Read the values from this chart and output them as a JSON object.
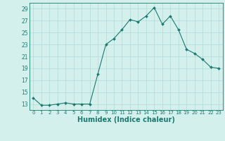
{
  "x": [
    0,
    1,
    2,
    3,
    4,
    5,
    6,
    7,
    8,
    9,
    10,
    11,
    12,
    13,
    14,
    15,
    16,
    17,
    18,
    19,
    20,
    21,
    22,
    23
  ],
  "y": [
    14.0,
    12.8,
    12.8,
    13.0,
    13.2,
    13.0,
    13.0,
    13.0,
    18.0,
    23.0,
    24.0,
    25.5,
    27.2,
    26.8,
    27.8,
    29.2,
    26.4,
    27.8,
    25.5,
    22.2,
    21.5,
    20.5,
    19.2,
    19.0
  ],
  "line_color": "#1a7a6e",
  "marker": "D",
  "marker_size": 2.0,
  "bg_color": "#d4f0ed",
  "grid_color": "#b8ddd9",
  "xlabel": "Humidex (Indice chaleur)",
  "xlabel_fontsize": 7,
  "ylabel_ticks": [
    13,
    15,
    17,
    19,
    21,
    23,
    25,
    27,
    29
  ],
  "xlim": [
    -0.5,
    23.5
  ],
  "ylim": [
    12.0,
    30.0
  ],
  "xtick_labels": [
    "0",
    "1",
    "2",
    "3",
    "4",
    "5",
    "6",
    "7",
    "8",
    "9",
    "10",
    "11",
    "12",
    "13",
    "14",
    "15",
    "16",
    "17",
    "18",
    "19",
    "20",
    "21",
    "22",
    "23"
  ],
  "ytick_fontsize": 5.5,
  "xtick_fontsize": 5.0,
  "title": ""
}
